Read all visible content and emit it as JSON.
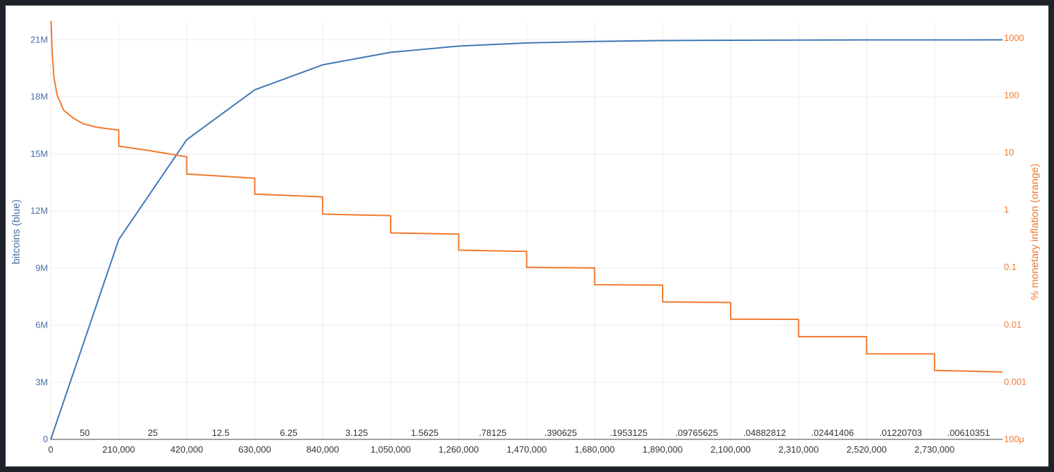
{
  "chart_data": {
    "type": "line",
    "xlabel": "",
    "ylabel_left": "bitcoins (blue)",
    "ylabel_right": "% monetary inflation (orange)",
    "x_range": [
      0,
      2940000
    ],
    "y_left_range": [
      0,
      22000000
    ],
    "y_right_range_log": [
      0.0001,
      2000
    ],
    "grid": true,
    "x_ticks": [
      {
        "value": 0,
        "label": "0"
      },
      {
        "value": 210000,
        "label": "210,000"
      },
      {
        "value": 420000,
        "label": "420,000"
      },
      {
        "value": 630000,
        "label": "630,000"
      },
      {
        "value": 840000,
        "label": "840,000"
      },
      {
        "value": 1050000,
        "label": "1,050,000"
      },
      {
        "value": 1260000,
        "label": "1,260,000"
      },
      {
        "value": 1470000,
        "label": "1,470,000"
      },
      {
        "value": 1680000,
        "label": "1,680,000"
      },
      {
        "value": 1890000,
        "label": "1,890,000"
      },
      {
        "value": 2100000,
        "label": "2,100,000"
      },
      {
        "value": 2310000,
        "label": "2,310,000"
      },
      {
        "value": 2520000,
        "label": "2,520,000"
      },
      {
        "value": 2730000,
        "label": "2,730,000"
      }
    ],
    "y_left_ticks": [
      {
        "value": 0,
        "label": "0"
      },
      {
        "value": 3000000,
        "label": "3M"
      },
      {
        "value": 6000000,
        "label": "6M"
      },
      {
        "value": 9000000,
        "label": "9M"
      },
      {
        "value": 12000000,
        "label": "12M"
      },
      {
        "value": 15000000,
        "label": "15M"
      },
      {
        "value": 18000000,
        "label": "18M"
      },
      {
        "value": 21000000,
        "label": "21M"
      }
    ],
    "y_right_ticks": [
      {
        "value": 0.0001,
        "label": "100μ"
      },
      {
        "value": 0.001,
        "label": "0.001"
      },
      {
        "value": 0.01,
        "label": "0.01"
      },
      {
        "value": 0.1,
        "label": "0.1"
      },
      {
        "value": 1,
        "label": "1"
      },
      {
        "value": 10,
        "label": "10"
      },
      {
        "value": 100,
        "label": "100"
      },
      {
        "value": 1000,
        "label": "1000"
      }
    ],
    "block_rewards": [
      {
        "x_center": 105000,
        "label": "50"
      },
      {
        "x_center": 315000,
        "label": "25"
      },
      {
        "x_center": 525000,
        "label": "12.5"
      },
      {
        "x_center": 735000,
        "label": "6.25"
      },
      {
        "x_center": 945000,
        "label": "3.125"
      },
      {
        "x_center": 1155000,
        "label": "1.5625"
      },
      {
        "x_center": 1365000,
        "label": ".78125"
      },
      {
        "x_center": 1575000,
        "label": ".390625"
      },
      {
        "x_center": 1785000,
        "label": ".1953125"
      },
      {
        "x_center": 1995000,
        "label": ".09765625"
      },
      {
        "x_center": 2205000,
        "label": ".04882812"
      },
      {
        "x_center": 2415000,
        "label": ".02441406"
      },
      {
        "x_center": 2625000,
        "label": ".01220703"
      },
      {
        "x_center": 2835000,
        "label": ".00610351"
      }
    ],
    "series": [
      {
        "color": "#3f78b5",
        "axis": "left",
        "x": [
          0,
          210000,
          420000,
          630000,
          840000,
          1050000,
          1260000,
          1470000,
          1680000,
          1890000,
          2100000,
          2310000,
          2520000,
          2730000,
          2940000
        ],
        "values": [
          0,
          10500000,
          15750000,
          18375000,
          19687500,
          20343750,
          20671875,
          20835937,
          20917968,
          20958984,
          20979492,
          20989746,
          20994873,
          20997436,
          20998718
        ]
      },
      {
        "color": "#f0792e",
        "axis": "right",
        "x": [
          1000,
          4000,
          10000,
          20000,
          40000,
          70000,
          100000,
          140000,
          180000,
          209999,
          210000,
          300000,
          419999,
          420000,
          629999,
          630000,
          839999,
          840000,
          1049999,
          1050000,
          1259999,
          1260000,
          1469999,
          1470000,
          1679999,
          1680000,
          1889999,
          1890000,
          2099999,
          2100000,
          2309999,
          2310000,
          2519999,
          2520000,
          2729999,
          2730000,
          2940000
        ],
        "values": [
          2000,
          600,
          200,
          100,
          55,
          40,
          32,
          28,
          26,
          25,
          13,
          11,
          8.5,
          4.25,
          3.6,
          1.9,
          1.7,
          0.85,
          0.8,
          0.4,
          0.38,
          0.2,
          0.19,
          0.1,
          0.098,
          0.05,
          0.049,
          0.025,
          0.0245,
          0.0125,
          0.0124,
          0.0062,
          0.0062,
          0.0031,
          0.0031,
          0.0016,
          0.0015
        ]
      }
    ]
  }
}
